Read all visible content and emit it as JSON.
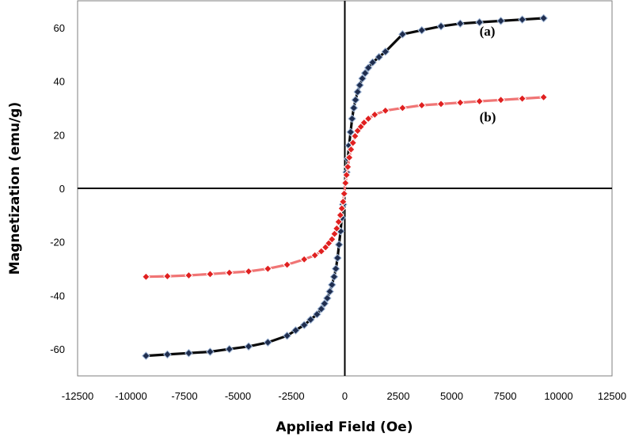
{
  "chart_data": {
    "type": "scatter",
    "title": "",
    "xlabel": "Applied Field (Oe)",
    "ylabel": "Magnetization  (emu/g)",
    "xlim": [
      -12500,
      12500
    ],
    "ylim": [
      -70,
      70
    ],
    "xticks": [
      -12500,
      -10000,
      -7500,
      -5000,
      -2500,
      0,
      2500,
      5000,
      7500,
      10000,
      12500
    ],
    "yticks": [
      -60,
      -40,
      -20,
      0,
      20,
      40,
      60
    ],
    "grid": false,
    "legend": "none",
    "annotations": [
      {
        "text": "(a)",
        "x": 6300,
        "y": 57
      },
      {
        "text": "(b)",
        "x": 6300,
        "y": 25
      }
    ],
    "series": [
      {
        "label": "(a)",
        "color": "#0a0a0a",
        "marker_color": "#1f2d4e",
        "highlight_color": "#9fb6d6",
        "x": [
          -9300,
          -8300,
          -7300,
          -6300,
          -5400,
          -4500,
          -3600,
          -2700,
          -2300,
          -1900,
          -1600,
          -1300,
          -1100,
          -950,
          -820,
          -700,
          -600,
          -500,
          -420,
          -340,
          -270,
          -200,
          -140,
          -80,
          -30,
          30,
          80,
          140,
          200,
          270,
          340,
          420,
          500,
          600,
          700,
          820,
          950,
          1100,
          1300,
          1600,
          1900,
          2700,
          3600,
          4500,
          5400,
          6300,
          7300,
          8300,
          9300
        ],
        "y": [
          -62.5,
          -62,
          -61.5,
          -61,
          -60,
          -59,
          -57.5,
          -55,
          -53,
          -51,
          -49,
          -47,
          -45,
          -43,
          -41,
          -38.5,
          -36,
          -33,
          -30,
          -26,
          -21,
          -16,
          -11,
          -6,
          -2,
          2,
          6,
          11,
          16,
          21,
          26,
          30,
          33,
          36,
          38.5,
          41,
          43,
          45,
          47,
          49,
          51,
          57.5,
          59,
          60.5,
          61.5,
          62,
          62.5,
          63,
          63.5
        ]
      },
      {
        "label": "(b)",
        "color": "#f07575",
        "marker_color": "#e02020",
        "highlight_color": "#ffffff",
        "x": [
          -9300,
          -8300,
          -7300,
          -6300,
          -5400,
          -4500,
          -3600,
          -2700,
          -1900,
          -1400,
          -1100,
          -900,
          -750,
          -600,
          -480,
          -380,
          -290,
          -210,
          -140,
          -80,
          -30,
          30,
          80,
          140,
          210,
          290,
          380,
          480,
          600,
          750,
          900,
          1100,
          1400,
          1900,
          2700,
          3600,
          4500,
          5400,
          6300,
          7300,
          8300,
          9300
        ],
        "y": [
          -33,
          -32.8,
          -32.5,
          -32,
          -31.5,
          -31,
          -30,
          -28.5,
          -26.5,
          -25,
          -23.5,
          -22,
          -20.5,
          -19,
          -17,
          -15,
          -12.5,
          -10,
          -7.5,
          -5,
          -2,
          2,
          5,
          8,
          11.5,
          14.5,
          17,
          19.5,
          21.5,
          23,
          24.5,
          26,
          27.5,
          29,
          30,
          31,
          31.5,
          32,
          32.5,
          33,
          33.5,
          34
        ]
      }
    ]
  }
}
